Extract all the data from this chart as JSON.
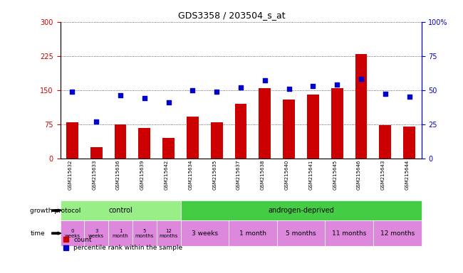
{
  "title": "GDS3358 / 203504_s_at",
  "samples": [
    "GSM215632",
    "GSM215633",
    "GSM215636",
    "GSM215639",
    "GSM215642",
    "GSM215634",
    "GSM215635",
    "GSM215637",
    "GSM215638",
    "GSM215640",
    "GSM215641",
    "GSM215645",
    "GSM215646",
    "GSM215643",
    "GSM215644"
  ],
  "counts": [
    80,
    25,
    75,
    67,
    45,
    92,
    80,
    120,
    155,
    130,
    140,
    155,
    230,
    73,
    70
  ],
  "percentiles": [
    49,
    27,
    46,
    44,
    41,
    50,
    49,
    52,
    57,
    51,
    53,
    54,
    58,
    47,
    45
  ],
  "ylim_left": [
    0,
    300
  ],
  "ylim_right": [
    0,
    100
  ],
  "yticks_left": [
    0,
    75,
    150,
    225,
    300
  ],
  "yticks_right": [
    0,
    25,
    50,
    75,
    100
  ],
  "bar_color": "#cc0000",
  "dot_color": "#0000cc",
  "bg_color": "#ffffff",
  "control_color": "#99ee88",
  "androgen_color": "#44cc44",
  "time_color": "#dd88dd",
  "control_samples": 5,
  "androgen_samples": 10,
  "control_label": "control",
  "androgen_label": "androgen-deprived",
  "time_labels_control": [
    "0\nweeks",
    "3\nweeks",
    "1\nmonth",
    "5\nmonths",
    "12\nmonths"
  ],
  "time_labels_androgen": [
    "3 weeks",
    "1 month",
    "5 months",
    "11 months",
    "12 months"
  ],
  "growth_protocol_label": "growth protocol",
  "time_label": "time",
  "legend_count": "count",
  "legend_percentile": "percentile rank within the sample",
  "axis_left_color": "#cc0000",
  "axis_right_color": "#0000cc"
}
